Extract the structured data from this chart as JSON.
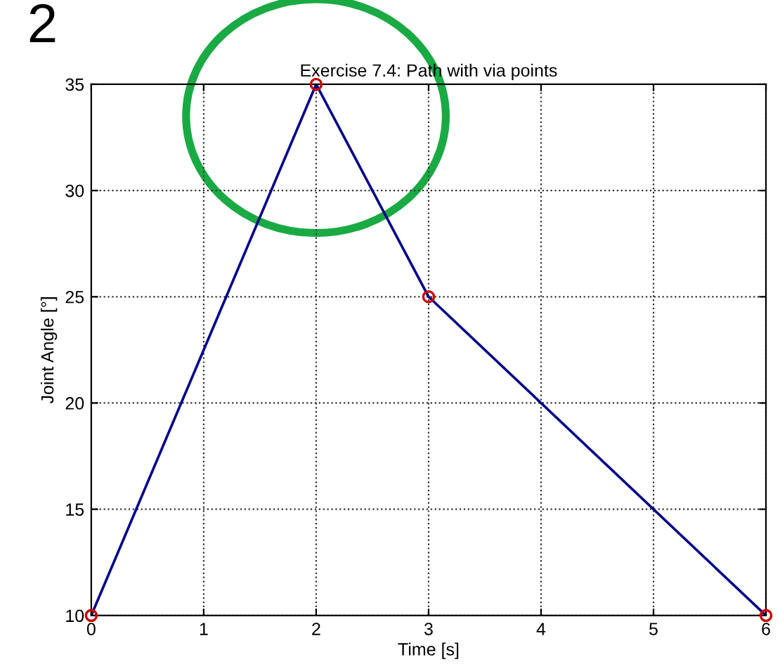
{
  "chart_data": {
    "type": "line",
    "title": "Exercise 7.4: Path with via points",
    "xlabel": "Time [s]",
    "ylabel": "Joint Angle [°]",
    "annotations": [
      "2"
    ],
    "x": [
      0,
      2,
      3,
      6
    ],
    "series": [
      {
        "color": "#00008b",
        "values": [
          10,
          35,
          25,
          10
        ],
        "marker": "none"
      },
      {
        "type": "scatter",
        "color": "#cc0000",
        "values": [
          10,
          35,
          25,
          10
        ],
        "marker": "circle"
      }
    ],
    "xlim": [
      0,
      6
    ],
    "xticks": [
      0,
      1,
      2,
      3,
      4,
      5,
      6
    ],
    "ylim": [
      10,
      35
    ],
    "yticks": [
      10,
      15,
      20,
      25,
      30,
      35
    ],
    "grid": true,
    "line_style": "solid"
  }
}
